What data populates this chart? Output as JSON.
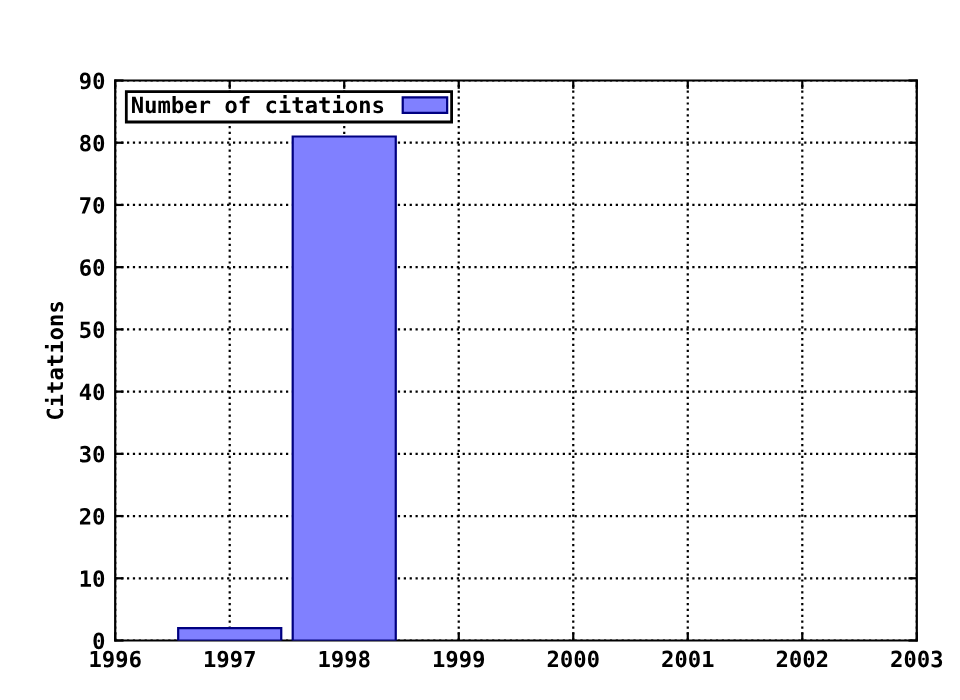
{
  "chart_data": {
    "type": "bar",
    "ylabel": "Citations",
    "x": [
      1997,
      1998
    ],
    "series": [
      {
        "name": "Number of citations",
        "color": "#8080ff",
        "values": [
          2,
          81
        ]
      }
    ],
    "xlim": [
      1996,
      2003
    ],
    "xticks": [
      1996,
      1997,
      1998,
      1999,
      2000,
      2001,
      2002,
      2003
    ],
    "ylim": [
      0,
      90
    ],
    "yticks": [
      0,
      10,
      20,
      30,
      40,
      50,
      60,
      70,
      80,
      90
    ],
    "grid": true,
    "legend": "top left",
    "line_style": "dotted"
  }
}
